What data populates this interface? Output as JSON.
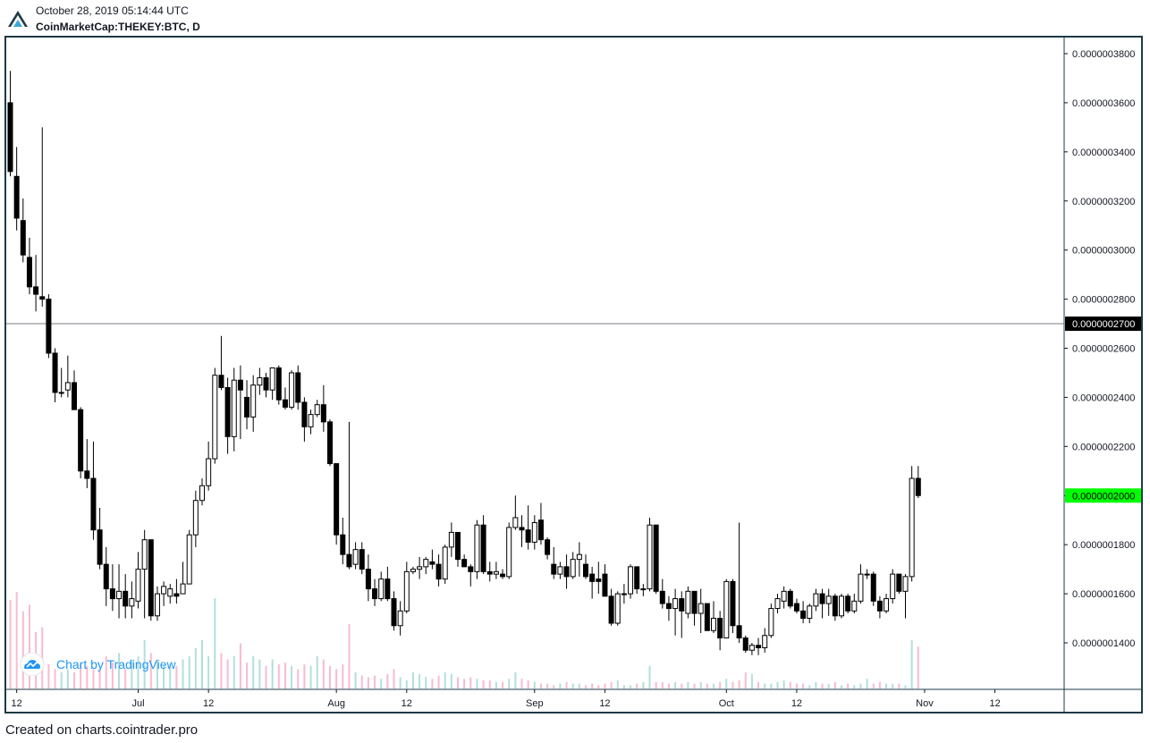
{
  "header": {
    "datetime": "October 28, 2019 05:14:44 UTC",
    "symbol": "CoinMarketCap:THEKEY:BTC, D"
  },
  "footer": {
    "text": "Created on charts.cointrader.pro"
  },
  "watermark": {
    "label": "Chart by TradingView",
    "icon": "tradingview-cloud-icon"
  },
  "logo": {
    "icon": "cointrader-logo-icon"
  },
  "colors": {
    "up_body": "#ffffff",
    "down_body": "#000000",
    "candle_border": "#000000",
    "volume_up": "#b2dfdb",
    "volume_down": "#f8bbd0",
    "last_price_tag": "#00ff00",
    "crosshair_tag": "#000000",
    "frame": "#1f3a44",
    "watermark": "#2196f3"
  },
  "chart_data": {
    "type": "candlestick",
    "title": "",
    "xlabel": "",
    "ylabel": "",
    "interval": "D",
    "ylim": [
      1.22e-07,
      3.89e-07
    ],
    "y_ticks": [
      "0.0000003800",
      "0.0000003600",
      "0.0000003400",
      "0.0000003200",
      "0.0000003000",
      "0.0000002800",
      "0.0000002600",
      "0.0000002400",
      "0.0000002200",
      "0.0000002000",
      "0.0000001800",
      "0.0000001600",
      "0.0000001400"
    ],
    "y_tick_values": [
      3.8e-07,
      3.6e-07,
      3.4e-07,
      3.2e-07,
      3e-07,
      2.8e-07,
      2.6e-07,
      2.4e-07,
      2.2e-07,
      2e-07,
      1.8e-07,
      1.6e-07,
      1.4e-07
    ],
    "x_ticks": [
      {
        "label": "12",
        "date": "2019-06-12"
      },
      {
        "label": "Jul",
        "date": "2019-07-01"
      },
      {
        "label": "12",
        "date": "2019-07-12"
      },
      {
        "label": "Aug",
        "date": "2019-08-01"
      },
      {
        "label": "12",
        "date": "2019-08-12"
      },
      {
        "label": "Sep",
        "date": "2019-09-01"
      },
      {
        "label": "12",
        "date": "2019-09-12"
      },
      {
        "label": "Oct",
        "date": "2019-10-01"
      },
      {
        "label": "12",
        "date": "2019-10-12"
      },
      {
        "label": "Nov",
        "date": "2019-11-01"
      },
      {
        "label": "12",
        "date": "2019-11-12"
      }
    ],
    "horizontal_line": {
      "value": 2.7e-07,
      "label": "0.0000002700"
    },
    "last_price": {
      "value": 2e-07,
      "label": "0.0000002000"
    },
    "first_date": "2019-06-11",
    "ohlc": [
      [
        3.6e-07,
        3.73e-07,
        3.3e-07,
        3.32e-07
      ],
      [
        3.3e-07,
        3.42e-07,
        3.08e-07,
        3.13e-07
      ],
      [
        3.12e-07,
        3.21e-07,
        2.95e-07,
        2.98e-07
      ],
      [
        2.97e-07,
        3.05e-07,
        2.82e-07,
        2.85e-07
      ],
      [
        2.85e-07,
        2.98e-07,
        2.75e-07,
        2.82e-07
      ],
      [
        2.81e-07,
        3.5e-07,
        2.77e-07,
        2.8e-07
      ],
      [
        2.8e-07,
        2.82e-07,
        2.56e-07,
        2.58e-07
      ],
      [
        2.58e-07,
        2.6e-07,
        2.38e-07,
        2.42e-07
      ],
      [
        2.42e-07,
        2.52e-07,
        2.4e-07,
        2.42e-07
      ],
      [
        2.43e-07,
        2.57e-07,
        2.4e-07,
        2.46e-07
      ],
      [
        2.46e-07,
        2.51e-07,
        2.37e-07,
        2.35e-07
      ],
      [
        2.35e-07,
        2.36e-07,
        2.07e-07,
        2.1e-07
      ],
      [
        2.1e-07,
        2.23e-07,
        2.03e-07,
        2.07e-07
      ],
      [
        2.07e-07,
        2.22e-07,
        1.82e-07,
        1.86e-07
      ],
      [
        1.86e-07,
        1.95e-07,
        1.7e-07,
        1.72e-07
      ],
      [
        1.72e-07,
        1.79e-07,
        1.55e-07,
        1.62e-07
      ],
      [
        1.62e-07,
        1.72e-07,
        1.53e-07,
        1.58e-07
      ],
      [
        1.58e-07,
        1.72e-07,
        1.5e-07,
        1.61e-07
      ],
      [
        1.61e-07,
        1.68e-07,
        1.5e-07,
        1.55e-07
      ],
      [
        1.55e-07,
        1.65e-07,
        1.5e-07,
        1.58e-07
      ],
      [
        1.57e-07,
        1.77e-07,
        1.54e-07,
        1.7e-07
      ],
      [
        1.7e-07,
        1.86e-07,
        1.5e-07,
        1.82e-07
      ],
      [
        1.82e-07,
        1.82e-07,
        1.49e-07,
        1.51e-07
      ],
      [
        1.51e-07,
        1.63e-07,
        1.49e-07,
        1.6e-07
      ],
      [
        1.6e-07,
        1.65e-07,
        1.55e-07,
        1.63e-07
      ],
      [
        1.59e-07,
        1.64e-07,
        1.56e-07,
        1.62e-07
      ],
      [
        1.6e-07,
        1.66e-07,
        1.56e-07,
        1.59e-07
      ],
      [
        1.6e-07,
        1.73e-07,
        1.6e-07,
        1.64e-07
      ],
      [
        1.64e-07,
        1.86e-07,
        1.64e-07,
        1.84e-07
      ],
      [
        1.84e-07,
        2.02e-07,
        1.79e-07,
        1.98e-07
      ],
      [
        1.98e-07,
        2.07e-07,
        1.96e-07,
        2.04e-07
      ],
      [
        2.04e-07,
        2.22e-07,
        2.02e-07,
        2.15e-07
      ],
      [
        2.15e-07,
        2.52e-07,
        2.13e-07,
        2.49e-07
      ],
      [
        2.49e-07,
        2.65e-07,
        2.43e-07,
        2.44e-07
      ],
      [
        2.44e-07,
        2.48e-07,
        2.17e-07,
        2.24e-07
      ],
      [
        2.24e-07,
        2.52e-07,
        2.18e-07,
        2.47e-07
      ],
      [
        2.47e-07,
        2.53e-07,
        2.23e-07,
        2.43e-07
      ],
      [
        2.4e-07,
        2.47e-07,
        2.27e-07,
        2.32e-07
      ],
      [
        2.32e-07,
        2.49e-07,
        2.26e-07,
        2.45e-07
      ],
      [
        2.45e-07,
        2.52e-07,
        2.41e-07,
        2.48e-07
      ],
      [
        2.48e-07,
        2.5e-07,
        2.4e-07,
        2.43e-07
      ],
      [
        2.43e-07,
        2.52e-07,
        2.39e-07,
        2.52e-07
      ],
      [
        2.52e-07,
        2.53e-07,
        2.37e-07,
        2.39e-07
      ],
      [
        2.39e-07,
        2.44e-07,
        2.35e-07,
        2.36e-07
      ],
      [
        2.36e-07,
        2.51e-07,
        2.35e-07,
        2.5e-07
      ],
      [
        2.5e-07,
        2.53e-07,
        2.35e-07,
        2.38e-07
      ],
      [
        2.38e-07,
        2.4e-07,
        2.22e-07,
        2.28e-07
      ],
      [
        2.28e-07,
        2.35e-07,
        2.25e-07,
        2.33e-07
      ],
      [
        2.33e-07,
        2.39e-07,
        2.32e-07,
        2.37e-07
      ],
      [
        2.37e-07,
        2.45e-07,
        2.26e-07,
        2.3e-07
      ],
      [
        2.3e-07,
        2.31e-07,
        2.12e-07,
        2.13e-07
      ],
      [
        2.13e-07,
        2.13e-07,
        1.8e-07,
        1.84e-07
      ],
      [
        1.84e-07,
        1.91e-07,
        1.72e-07,
        1.76e-07
      ],
      [
        1.76e-07,
        2.3e-07,
        1.7e-07,
        1.71e-07
      ],
      [
        1.72e-07,
        1.81e-07,
        1.7e-07,
        1.78e-07
      ],
      [
        1.78e-07,
        1.81e-07,
        1.68e-07,
        1.7e-07
      ],
      [
        1.7e-07,
        1.76e-07,
        1.57e-07,
        1.62e-07
      ],
      [
        1.62e-07,
        1.66e-07,
        1.55e-07,
        1.58e-07
      ],
      [
        1.58e-07,
        1.69e-07,
        1.57e-07,
        1.66e-07
      ],
      [
        1.66e-07,
        1.71e-07,
        1.57e-07,
        1.58e-07
      ],
      [
        1.58e-07,
        1.61e-07,
        1.45e-07,
        1.47e-07
      ],
      [
        1.47e-07,
        1.57e-07,
        1.43e-07,
        1.53e-07
      ],
      [
        1.53e-07,
        1.73e-07,
        1.52e-07,
        1.69e-07
      ],
      [
        1.69e-07,
        1.71e-07,
        1.68e-07,
        1.7e-07
      ],
      [
        1.7e-07,
        1.75e-07,
        1.66e-07,
        1.71e-07
      ],
      [
        1.71e-07,
        1.75e-07,
        1.68e-07,
        1.74e-07
      ],
      [
        1.73e-07,
        1.78e-07,
        1.7e-07,
        1.72e-07
      ],
      [
        1.72e-07,
        1.76e-07,
        1.63e-07,
        1.66e-07
      ],
      [
        1.66e-07,
        1.8e-07,
        1.64e-07,
        1.79e-07
      ],
      [
        1.79e-07,
        1.89e-07,
        1.75e-07,
        1.85e-07
      ],
      [
        1.85e-07,
        1.85e-07,
        1.71e-07,
        1.74e-07
      ],
      [
        1.74e-07,
        1.76e-07,
        1.71e-07,
        1.71e-07
      ],
      [
        1.71e-07,
        1.72e-07,
        1.63e-07,
        1.69e-07
      ],
      [
        1.69e-07,
        1.9e-07,
        1.66e-07,
        1.88e-07
      ],
      [
        1.88e-07,
        1.92e-07,
        1.68e-07,
        1.69e-07
      ],
      [
        1.69e-07,
        1.73e-07,
        1.65e-07,
        1.68e-07
      ],
      [
        1.68e-07,
        1.73e-07,
        1.66e-07,
        1.69e-07
      ],
      [
        1.68e-07,
        1.7e-07,
        1.66e-07,
        1.67e-07
      ],
      [
        1.67e-07,
        1.89e-07,
        1.66e-07,
        1.87e-07
      ],
      [
        1.87e-07,
        2e-07,
        1.86e-07,
        1.91e-07
      ],
      [
        1.87e-07,
        1.92e-07,
        1.79e-07,
        1.86e-07
      ],
      [
        1.86e-07,
        1.96e-07,
        1.78e-07,
        1.81e-07
      ],
      [
        1.81e-07,
        1.92e-07,
        1.78e-07,
        1.89e-07
      ],
      [
        1.9e-07,
        1.97e-07,
        1.8e-07,
        1.82e-07
      ],
      [
        1.82e-07,
        1.83e-07,
        1.74e-07,
        1.76e-07
      ],
      [
        1.72e-07,
        1.79e-07,
        1.66e-07,
        1.68e-07
      ],
      [
        1.68e-07,
        1.73e-07,
        1.66e-07,
        1.71e-07
      ],
      [
        1.71e-07,
        1.76e-07,
        1.62e-07,
        1.67e-07
      ],
      [
        1.67e-07,
        1.77e-07,
        1.66e-07,
        1.74e-07
      ],
      [
        1.74e-07,
        1.81e-07,
        1.67e-07,
        1.76e-07
      ],
      [
        1.72e-07,
        1.76e-07,
        1.66e-07,
        1.67e-07
      ],
      [
        1.68e-07,
        1.71e-07,
        1.58e-07,
        1.65e-07
      ],
      [
        1.66e-07,
        1.73e-07,
        1.6e-07,
        1.65e-07
      ],
      [
        1.68e-07,
        1.72e-07,
        1.59e-07,
        1.59e-07
      ],
      [
        1.59e-07,
        1.62e-07,
        1.47e-07,
        1.48e-07
      ],
      [
        1.48e-07,
        1.61e-07,
        1.47e-07,
        1.6e-07
      ],
      [
        1.6e-07,
        1.64e-07,
        1.56e-07,
        1.6e-07
      ],
      [
        1.6e-07,
        1.72e-07,
        1.58e-07,
        1.71e-07
      ],
      [
        1.71e-07,
        1.71e-07,
        1.6e-07,
        1.62e-07
      ],
      [
        1.62e-07,
        1.64e-07,
        1.59e-07,
        1.62e-07
      ],
      [
        1.62e-07,
        1.91e-07,
        1.61e-07,
        1.88e-07
      ],
      [
        1.88e-07,
        1.88e-07,
        1.6e-07,
        1.61e-07
      ],
      [
        1.61e-07,
        1.66e-07,
        1.54e-07,
        1.56e-07
      ],
      [
        1.56e-07,
        1.59e-07,
        1.49e-07,
        1.54e-07
      ],
      [
        1.54e-07,
        1.62e-07,
        1.43e-07,
        1.58e-07
      ],
      [
        1.58e-07,
        1.61e-07,
        1.42e-07,
        1.53e-07
      ],
      [
        1.52e-07,
        1.63e-07,
        1.5e-07,
        1.61e-07
      ],
      [
        1.61e-07,
        1.61e-07,
        1.47e-07,
        1.52e-07
      ],
      [
        1.52e-07,
        1.62e-07,
        1.44e-07,
        1.56e-07
      ],
      [
        1.56e-07,
        1.56e-07,
        1.45e-07,
        1.45e-07
      ],
      [
        1.45e-07,
        1.57e-07,
        1.44e-07,
        1.5e-07
      ],
      [
        1.5e-07,
        1.53e-07,
        1.37e-07,
        1.42e-07
      ],
      [
        1.42e-07,
        1.66e-07,
        1.42e-07,
        1.65e-07
      ],
      [
        1.65e-07,
        1.66e-07,
        1.44e-07,
        1.47e-07
      ],
      [
        1.47e-07,
        1.89e-07,
        1.4e-07,
        1.42e-07
      ],
      [
        1.42e-07,
        1.43e-07,
        1.36e-07,
        1.37e-07
      ],
      [
        1.37e-07,
        1.4e-07,
        1.35e-07,
        1.39e-07
      ],
      [
        1.39e-07,
        1.42e-07,
        1.35e-07,
        1.38e-07
      ],
      [
        1.38e-07,
        1.46e-07,
        1.36e-07,
        1.43e-07
      ],
      [
        1.43e-07,
        1.56e-07,
        1.42e-07,
        1.54e-07
      ],
      [
        1.54e-07,
        1.6e-07,
        1.52e-07,
        1.58e-07
      ],
      [
        1.57e-07,
        1.63e-07,
        1.54e-07,
        1.61e-07
      ],
      [
        1.61e-07,
        1.62e-07,
        1.54e-07,
        1.55e-07
      ],
      [
        1.56e-07,
        1.58e-07,
        1.52e-07,
        1.53e-07
      ],
      [
        1.53e-07,
        1.57e-07,
        1.48e-07,
        1.5e-07
      ],
      [
        1.5e-07,
        1.56e-07,
        1.48e-07,
        1.55e-07
      ],
      [
        1.55e-07,
        1.62e-07,
        1.53e-07,
        1.6e-07
      ],
      [
        1.6e-07,
        1.62e-07,
        1.5e-07,
        1.56e-07
      ],
      [
        1.56e-07,
        1.62e-07,
        1.51e-07,
        1.59e-07
      ],
      [
        1.59e-07,
        1.6e-07,
        1.49e-07,
        1.51e-07
      ],
      [
        1.51e-07,
        1.6e-07,
        1.5e-07,
        1.59e-07
      ],
      [
        1.59e-07,
        1.6e-07,
        1.52e-07,
        1.53e-07
      ],
      [
        1.53e-07,
        1.6e-07,
        1.52e-07,
        1.57e-07
      ],
      [
        1.57e-07,
        1.72e-07,
        1.56e-07,
        1.68e-07
      ],
      [
        1.68e-07,
        1.7e-07,
        1.66e-07,
        1.68e-07
      ],
      [
        1.68e-07,
        1.69e-07,
        1.55e-07,
        1.57e-07
      ],
      [
        1.57e-07,
        1.59e-07,
        1.5e-07,
        1.53e-07
      ],
      [
        1.53e-07,
        1.6e-07,
        1.52e-07,
        1.58e-07
      ],
      [
        1.58e-07,
        1.7e-07,
        1.56e-07,
        1.68e-07
      ],
      [
        1.68e-07,
        1.68e-07,
        1.6e-07,
        1.61e-07
      ],
      [
        1.61e-07,
        1.68e-07,
        1.5e-07,
        1.67e-07
      ],
      [
        1.67e-07,
        2.12e-07,
        1.65e-07,
        2.07e-07
      ],
      [
        2.07e-07,
        2.12e-07,
        1.99e-07,
        2e-07
      ]
    ],
    "volume_colors_follow_candle": true,
    "volume_relative": [
      0.55,
      0.6,
      0.48,
      0.52,
      0.35,
      0.38,
      0.15,
      0.12,
      0.1,
      0.12,
      0.1,
      0.15,
      0.14,
      0.12,
      0.12,
      0.2,
      0.16,
      0.22,
      0.12,
      0.18,
      0.2,
      0.3,
      0.22,
      0.18,
      0.14,
      0.15,
      0.14,
      0.18,
      0.2,
      0.25,
      0.3,
      0.2,
      0.56,
      0.22,
      0.18,
      0.2,
      0.28,
      0.16,
      0.2,
      0.18,
      0.14,
      0.18,
      0.15,
      0.16,
      0.14,
      0.12,
      0.15,
      0.14,
      0.2,
      0.18,
      0.14,
      0.12,
      0.15,
      0.4,
      0.1,
      0.08,
      0.07,
      0.08,
      0.06,
      0.09,
      0.12,
      0.07,
      0.05,
      0.1,
      0.09,
      0.07,
      0.06,
      0.08,
      0.1,
      0.09,
      0.07,
      0.06,
      0.07,
      0.06,
      0.05,
      0.05,
      0.04,
      0.04,
      0.06,
      0.1,
      0.06,
      0.05,
      0.04,
      0.03,
      0.03,
      0.02,
      0.03,
      0.04,
      0.03,
      0.03,
      0.02,
      0.03,
      0.02,
      0.03,
      0.04,
      0.05,
      0.02,
      0.02,
      0.03,
      0.04,
      0.14,
      0.04,
      0.04,
      0.03,
      0.04,
      0.03,
      0.04,
      0.03,
      0.04,
      0.03,
      0.03,
      0.04,
      0.06,
      0.04,
      0.05,
      0.1,
      0.09,
      0.04,
      0.03,
      0.03,
      0.04,
      0.05,
      0.04,
      0.03,
      0.03,
      0.02,
      0.04,
      0.03,
      0.03,
      0.04,
      0.02,
      0.03,
      0.02,
      0.03,
      0.06,
      0.03,
      0.04,
      0.03,
      0.03,
      0.03,
      0.02,
      0.3,
      0.26
    ]
  }
}
